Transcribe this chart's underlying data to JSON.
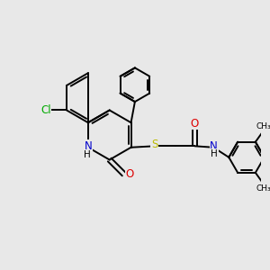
{
  "bg_color": "#e8e8e8",
  "atom_colors": {
    "C": "#000000",
    "N": "#0000cc",
    "O": "#dd0000",
    "S": "#bbbb00",
    "Cl": "#00aa00",
    "H": "#000000"
  },
  "bond_color": "#000000",
  "bond_width": 1.4,
  "figsize": [
    3.0,
    3.0
  ],
  "dpi": 100
}
